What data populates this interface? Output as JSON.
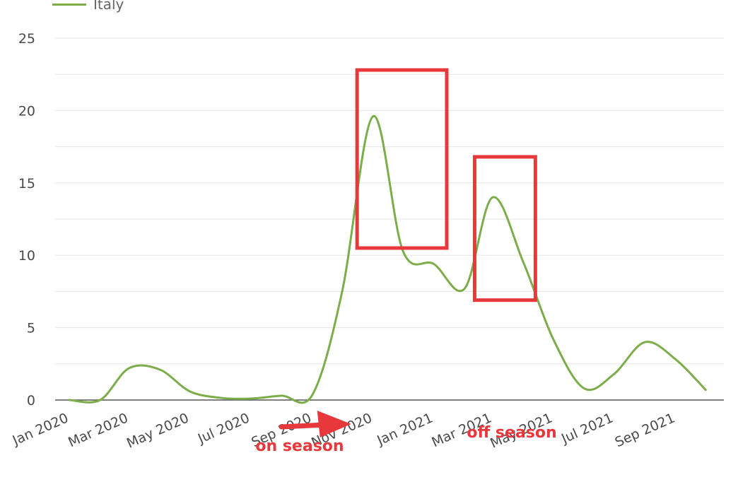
{
  "chart_data": {
    "type": "line",
    "legend": {
      "placement": "top-left",
      "entries": [
        "Italy"
      ]
    },
    "series": [
      {
        "name": "Italy",
        "color": "#7cad4a",
        "points": [
          {
            "x": "2020-01-01",
            "y": 0
          },
          {
            "x": "2020-02-01",
            "y": 0
          },
          {
            "x": "2020-03-01",
            "y": 2.2
          },
          {
            "x": "2020-04-01",
            "y": 2.1
          },
          {
            "x": "2020-05-01",
            "y": 0.6
          },
          {
            "x": "2020-06-01",
            "y": 0.15
          },
          {
            "x": "2020-07-01",
            "y": 0.1
          },
          {
            "x": "2020-08-01",
            "y": 0.3
          },
          {
            "x": "2020-09-01",
            "y": 0.35
          },
          {
            "x": "2020-10-01",
            "y": 7.5
          },
          {
            "x": "2020-11-01",
            "y": 19.6
          },
          {
            "x": "2020-12-01",
            "y": 10.3
          },
          {
            "x": "2021-01-01",
            "y": 9.4
          },
          {
            "x": "2021-02-01",
            "y": 7.7
          },
          {
            "x": "2021-03-01",
            "y": 14.0
          },
          {
            "x": "2021-04-01",
            "y": 9.5
          },
          {
            "x": "2021-05-01",
            "y": 4.2
          },
          {
            "x": "2021-06-01",
            "y": 0.8
          },
          {
            "x": "2021-07-01",
            "y": 1.8
          },
          {
            "x": "2021-08-01",
            "y": 4.0
          },
          {
            "x": "2021-09-01",
            "y": 2.8
          },
          {
            "x": "2021-10-01",
            "y": 0.7
          }
        ]
      }
    ],
    "x_ticks": [
      "Jan 2020",
      "Mar 2020",
      "May 2020",
      "Jul 2020",
      "Sep 2020",
      "Nov 2020",
      "Jan 2021",
      "Mar 2021",
      "May 2021",
      "Jul 2021",
      "Sep 2021"
    ],
    "y_ticks": [
      0,
      5,
      10,
      15,
      20,
      25
    ],
    "xlim": [
      "2020-01-01",
      "2021-10-15"
    ],
    "ylim": [
      0,
      25
    ],
    "grid": true,
    "annotations": [
      {
        "type": "box",
        "x0": "2020-10-16",
        "x1": "2021-01-14",
        "y0": 10.5,
        "y1": 22.8,
        "color": "#e8383c"
      },
      {
        "type": "box",
        "x0": "2021-02-11",
        "x1": "2021-04-13",
        "y0": 6.9,
        "y1": 16.8,
        "color": "#e8383c"
      },
      {
        "type": "arrow",
        "from": "2020-08-01",
        "to": "2020-10-10",
        "color": "#e8383c"
      },
      {
        "type": "text",
        "text": "on season",
        "color": "#e8383c"
      },
      {
        "type": "text",
        "text": "off season",
        "color": "#e8383c"
      }
    ]
  }
}
